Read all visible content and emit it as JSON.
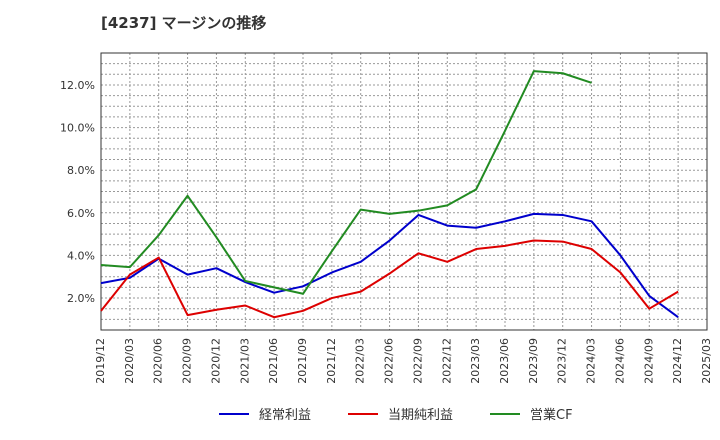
{
  "chart_data": {
    "type": "line",
    "title": "[4237]  マージンの推移",
    "xlabel": "",
    "ylabel": "",
    "x": [
      "2019/12",
      "2020/03",
      "2020/06",
      "2020/09",
      "2020/12",
      "2021/03",
      "2021/06",
      "2021/09",
      "2021/12",
      "2022/03",
      "2022/06",
      "2022/09",
      "2022/12",
      "2023/03",
      "2023/06",
      "2023/09",
      "2023/12",
      "2024/03",
      "2024/06",
      "2024/09",
      "2024/12",
      "2025/03"
    ],
    "y_ticks": [
      {
        "value": 2.0,
        "label": "2.0%"
      },
      {
        "value": 4.0,
        "label": "4.0%"
      },
      {
        "value": 6.0,
        "label": "6.0%"
      },
      {
        "value": 8.0,
        "label": "8.0%"
      },
      {
        "value": 10.0,
        "label": "10.0%"
      },
      {
        "value": 12.0,
        "label": "12.0%"
      }
    ],
    "ylim": [
      0.5,
      13.5
    ],
    "grid": true,
    "legend_position": "bottom",
    "series": [
      {
        "name": "経常利益",
        "color": "#0000cc",
        "values": [
          2.7,
          2.95,
          3.85,
          3.1,
          3.4,
          2.75,
          2.25,
          2.55,
          3.2,
          3.7,
          4.7,
          5.9,
          5.4,
          5.3,
          5.6,
          5.95,
          5.9,
          5.6,
          4.0,
          2.1,
          1.1,
          null
        ]
      },
      {
        "name": "当期純利益",
        "color": "#dd0000",
        "values": [
          1.4,
          3.1,
          3.9,
          1.2,
          1.45,
          1.65,
          1.1,
          1.4,
          2.0,
          2.3,
          3.15,
          4.1,
          3.7,
          4.3,
          4.45,
          4.7,
          4.65,
          4.3,
          3.2,
          1.5,
          2.3,
          null
        ]
      },
      {
        "name": "営業CF",
        "color": "#228b22",
        "values": [
          3.55,
          3.45,
          4.95,
          6.8,
          4.85,
          2.8,
          2.5,
          2.2,
          4.2,
          6.15,
          5.95,
          6.1,
          6.35,
          7.1,
          9.85,
          12.65,
          12.55,
          12.1,
          null,
          null,
          null,
          null
        ]
      }
    ]
  }
}
